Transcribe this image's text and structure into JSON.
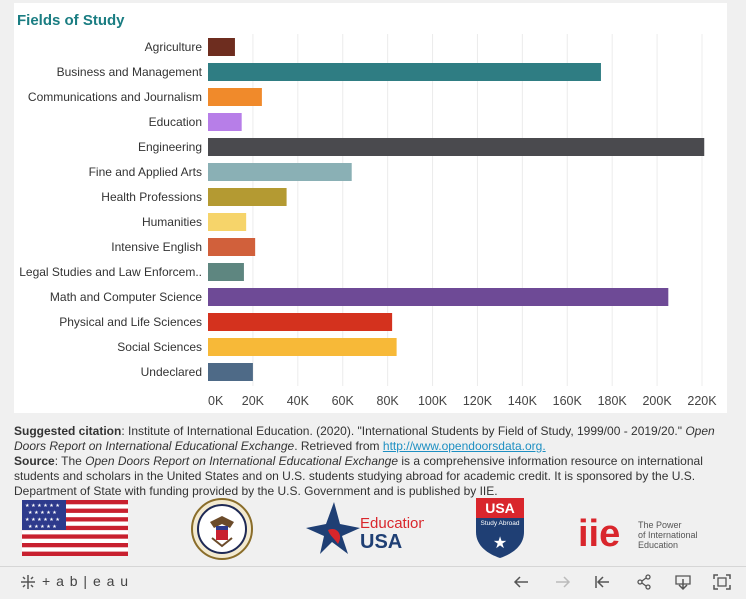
{
  "chart_data": {
    "type": "bar",
    "orientation": "horizontal",
    "title": "Fields of Study",
    "categories": [
      "Agriculture",
      "Business and Management",
      "Communications and Journalism",
      "Education",
      "Engineering",
      "Fine and Applied Arts",
      "Health Professions",
      "Humanities",
      "Intensive English",
      "Legal Studies and Law Enforcem..",
      "Math and Computer Science",
      "Physical and Life Sciences",
      "Social Sciences",
      "Undeclared"
    ],
    "values": [
      12000,
      175000,
      24000,
      15000,
      221000,
      64000,
      35000,
      17000,
      21000,
      16000,
      205000,
      82000,
      84000,
      20000
    ],
    "colors": [
      "#6e2d1f",
      "#2f7d83",
      "#f08a2b",
      "#b77ee8",
      "#4a4a4e",
      "#8ab0b5",
      "#b49a32",
      "#f6d46a",
      "#d1603b",
      "#5e8680",
      "#6e4a96",
      "#d4321e",
      "#f7b938",
      "#4e6a87"
    ],
    "xlim": [
      0,
      220000
    ],
    "xticks": [
      "0K",
      "20K",
      "40K",
      "60K",
      "80K",
      "100K",
      "120K",
      "140K",
      "160K",
      "180K",
      "200K",
      "220K"
    ],
    "grid": true
  },
  "citation": {
    "suggested_label": "Suggested citation",
    "suggested_text": ": Institute of International Education. (2020). \"International Students by Field of Study, 1999/00 - 2019/20.\" ",
    "suggested_italic": "Open Doors Report on International Educational Exchange",
    "suggested_retrieved": ". Retrieved from ",
    "link": "http://www.opendoorsdata.org.",
    "source_label": "Source",
    "source_pre": ": The ",
    "source_italic": "Open Doors Report on International Educational Exchange",
    "source_text": " is a comprehensive information resource on international students and scholars in the United States and on U.S. students studying abroad for academic credit. It is sponsored by the U.S. Department of State with funding provided by the U.S. Government and is published by IIE."
  },
  "logos": {
    "education_usa_1": "Education",
    "education_usa_2": "USA",
    "study_abroad_top": "USA",
    "study_abroad_sub": "Study Abroad",
    "iie_mark": "iie",
    "iie_tag_1": "The Power",
    "iie_tag_2": "of International",
    "iie_tag_3": "Education"
  },
  "footer": {
    "brand": "+ a b | e a u",
    "back_icon": "arrow-left-icon",
    "forward_icon": "arrow-right-icon",
    "reset_icon": "revert-icon",
    "share_icon": "share-icon",
    "download_icon": "download-icon",
    "fullscreen_icon": "fullscreen-icon"
  }
}
